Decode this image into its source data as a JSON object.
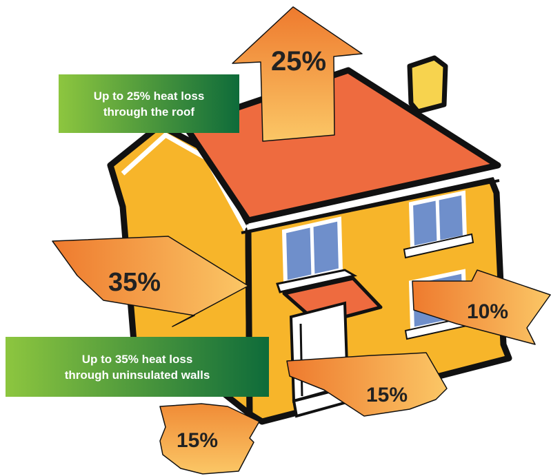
{
  "callouts": {
    "roof": {
      "line1": "Up to 25% heat loss",
      "line2": "through the roof"
    },
    "walls": {
      "line1": "Up to 35% heat loss",
      "line2": "through uninsulated walls"
    }
  },
  "arrows": {
    "roof": "25%",
    "walls": "35%",
    "windows": "10%",
    "door": "15%",
    "floor": "15%"
  },
  "colors": {
    "wall": "#F7B52A",
    "roof": "#EE6B3F",
    "window": "#6F8FCB",
    "outline": "#111111",
    "callout_start": "#8DC63F",
    "callout_end": "#0E6B3A",
    "arrow_light": "#FBC766",
    "arrow_dark": "#EE7A2E"
  }
}
